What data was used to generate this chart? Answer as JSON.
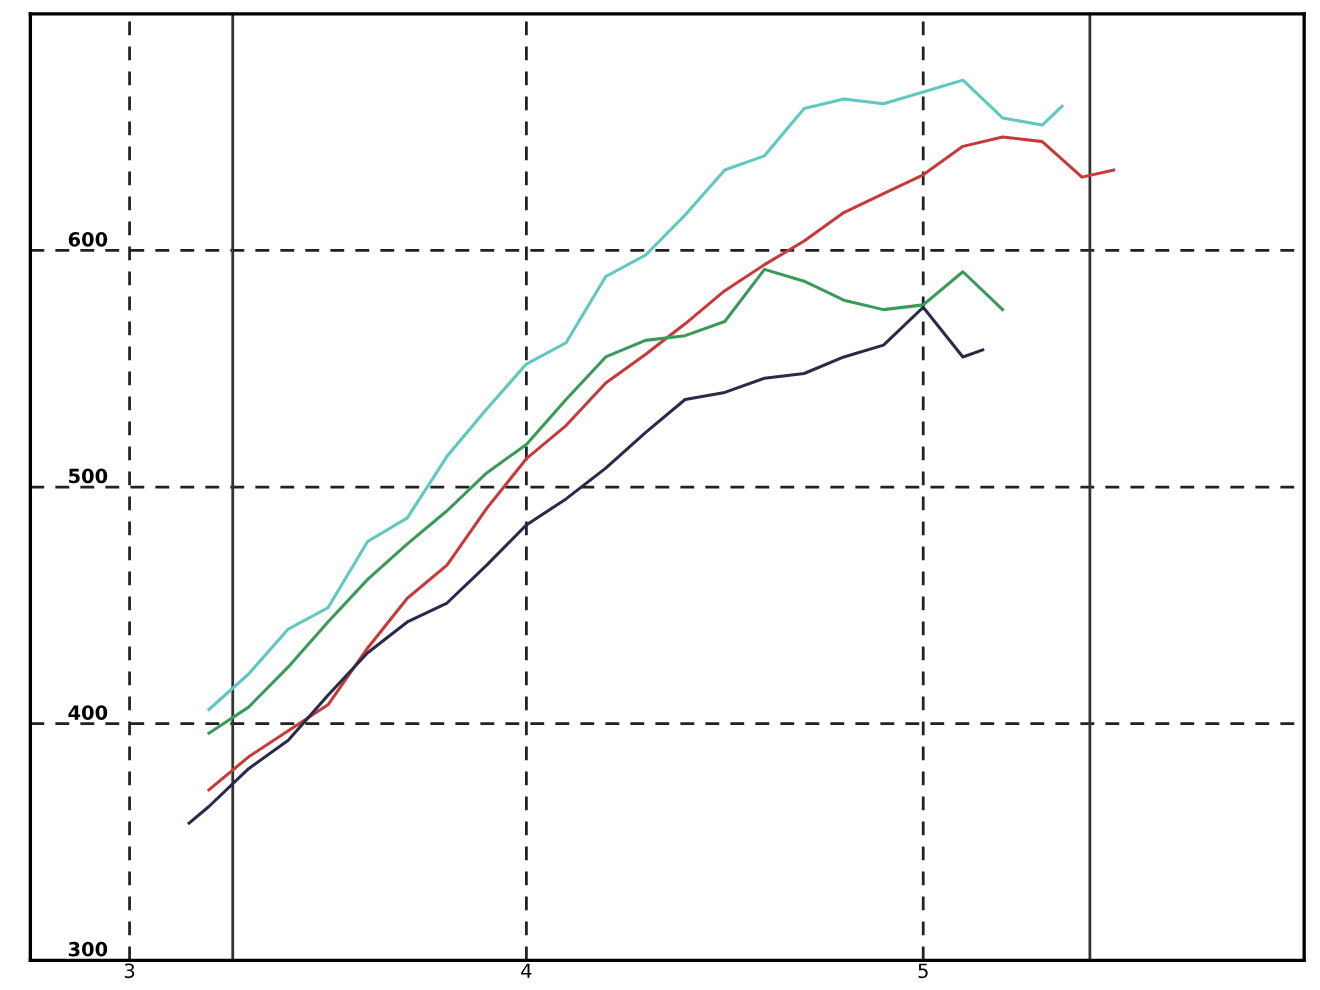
{
  "chart_data": {
    "type": "line",
    "xlim": [
      2.75,
      5.96
    ],
    "xticks": [
      3,
      4,
      5
    ],
    "ylim": [
      300,
      700
    ],
    "yticks": [
      300,
      400,
      500,
      600
    ],
    "grid": true,
    "marker": "none",
    "line_style": "solid",
    "ref_lines": [
      {
        "axis": "x",
        "value": 3.26,
        "color": "#333333",
        "line_style": "solid"
      },
      {
        "axis": "x",
        "value": 5.42,
        "color": "#333333",
        "line_style": "solid"
      }
    ],
    "series": [
      {
        "color": "#5fc8c0",
        "x": [
          3.2,
          3.3,
          3.4,
          3.5,
          3.6,
          3.7,
          3.8,
          3.9,
          4.0,
          4.1,
          4.2,
          4.3,
          4.4,
          4.5,
          4.6,
          4.7,
          4.8,
          4.9,
          5.0,
          5.1,
          5.2,
          5.3,
          5.35
        ],
        "values": [
          406,
          421,
          440,
          449,
          477,
          487,
          513,
          533,
          552,
          561,
          589,
          598,
          615,
          634,
          640,
          660,
          664,
          662,
          667,
          672,
          656,
          653,
          661
        ]
      },
      {
        "color": "#c83a3a",
        "x": [
          3.2,
          3.3,
          3.4,
          3.5,
          3.6,
          3.7,
          3.8,
          3.9,
          4.0,
          4.1,
          4.2,
          4.3,
          4.4,
          4.5,
          4.6,
          4.7,
          4.8,
          4.9,
          5.0,
          5.1,
          5.2,
          5.3,
          5.4,
          5.48
        ],
        "values": [
          372,
          386,
          397,
          408,
          432,
          453,
          467,
          491,
          512,
          526,
          544,
          556,
          569,
          583,
          594,
          604,
          616,
          624,
          632,
          644,
          648,
          646,
          631,
          634
        ]
      },
      {
        "color": "#3a9a5a",
        "x": [
          3.2,
          3.3,
          3.4,
          3.5,
          3.6,
          3.7,
          3.8,
          3.9,
          4.0,
          4.1,
          4.2,
          4.3,
          4.4,
          4.5,
          4.6,
          4.7,
          4.8,
          4.9,
          5.0,
          5.1,
          5.2
        ],
        "values": [
          396,
          407,
          424,
          443,
          461,
          476,
          490,
          506,
          518,
          537,
          555,
          562,
          564,
          570,
          592,
          587,
          579,
          575,
          577,
          591,
          575
        ]
      },
      {
        "color": "#2a2a4a",
        "x": [
          3.15,
          3.2,
          3.3,
          3.4,
          3.5,
          3.6,
          3.7,
          3.8,
          3.9,
          4.0,
          4.1,
          4.2,
          4.3,
          4.4,
          4.5,
          4.6,
          4.7,
          4.8,
          4.9,
          5.0,
          5.1,
          5.15
        ],
        "values": [
          358,
          365,
          381,
          393,
          412,
          430,
          443,
          451,
          467,
          484,
          495,
          508,
          523,
          537,
          540,
          546,
          548,
          555,
          560,
          576,
          555,
          558
        ]
      }
    ]
  }
}
